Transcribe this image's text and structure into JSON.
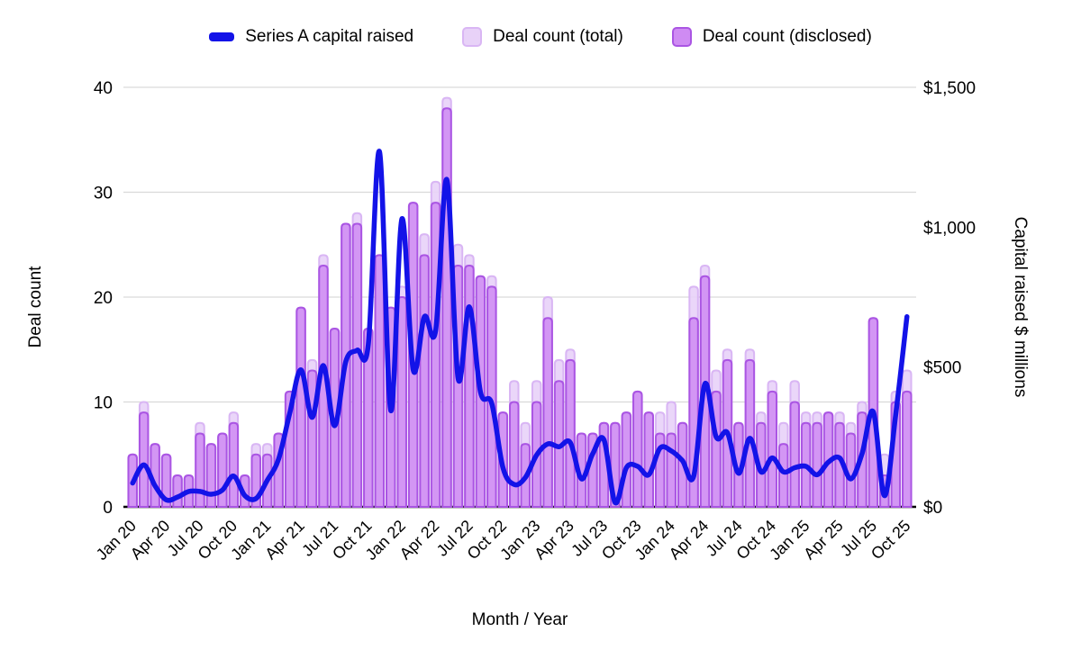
{
  "legend": {
    "items": [
      {
        "label": "Series A capital raised",
        "type": "line",
        "color": "#1313e8"
      },
      {
        "label": "Deal count (total)",
        "type": "bar",
        "color": "#e8d2f8",
        "border": "#d9b6f4"
      },
      {
        "label": "Deal count (disclosed)",
        "type": "bar",
        "color": "#cf8bf3",
        "border": "#aa55e3"
      }
    ]
  },
  "axes": {
    "left": {
      "title": "Deal count",
      "ticks": [
        "0",
        "10",
        "20",
        "30",
        "40"
      ],
      "range": [
        0,
        40
      ]
    },
    "right": {
      "title": "Capital raised $ millions",
      "ticks": [
        "$0",
        "$500",
        "$1,000",
        "$1,500"
      ],
      "range": [
        0,
        1500
      ]
    },
    "x": {
      "title": "Month / Year",
      "labels_every_n_months": 3
    }
  },
  "chart_data": {
    "type": "combo-bar-line",
    "categories": [
      "Jan 20",
      "Feb 20",
      "Mar 20",
      "Apr 20",
      "May 20",
      "Jun 20",
      "Jul 20",
      "Aug 20",
      "Sep 20",
      "Oct 20",
      "Nov 20",
      "Dec 20",
      "Jan 21",
      "Feb 21",
      "Mar 21",
      "Apr 21",
      "May 21",
      "Jun 21",
      "Jul 21",
      "Aug 21",
      "Sep 21",
      "Oct 21",
      "Nov 21",
      "Dec 21",
      "Jan 22",
      "Feb 22",
      "Mar 22",
      "Apr 22",
      "May 22",
      "Jun 22",
      "Jul 22",
      "Aug 22",
      "Sep 22",
      "Oct 22",
      "Nov 22",
      "Dec 22",
      "Jan 23",
      "Feb 23",
      "Mar 23",
      "Apr 23",
      "May 23",
      "Jun 23",
      "Jul 23",
      "Aug 23",
      "Sep 23",
      "Oct 23",
      "Nov 23",
      "Dec 23",
      "Jan 24",
      "Feb 24",
      "Mar 24",
      "Apr 24",
      "May 24",
      "Jun 24",
      "Jul 24",
      "Aug 24",
      "Sep 24",
      "Oct 24",
      "Nov 24",
      "Dec 24",
      "Jan 25",
      "Feb 25",
      "Mar 25",
      "Apr 25",
      "May 25",
      "Jun 25",
      "Jul 25",
      "Aug 25",
      "Sep 25",
      "Oct 25"
    ],
    "x_tick_labels": [
      "Jan 20",
      "Apr 20",
      "Jul 20",
      "Oct 20",
      "Jan 21",
      "Apr 21",
      "Jul 21",
      "Oct 21",
      "Jan 22",
      "Apr 22",
      "Jul 22",
      "Oct 22",
      "Jan 23",
      "Apr 23",
      "Jul 23",
      "Oct 23",
      "Jan 24",
      "Apr 24",
      "Jul 24",
      "Oct 24",
      "Jan 25",
      "Apr 25",
      "Jul 25",
      "Oct 25"
    ],
    "series": [
      {
        "name": "Deal count (total)",
        "axis": "left",
        "kind": "bar",
        "values": [
          5,
          10,
          6,
          5,
          3,
          3,
          8,
          6,
          7,
          9,
          3,
          6,
          6,
          7,
          11,
          19,
          14,
          24,
          17,
          27,
          28,
          17,
          24,
          19,
          21,
          29,
          26,
          31,
          39,
          25,
          24,
          22,
          22,
          9,
          12,
          8,
          12,
          20,
          14,
          15,
          7,
          7,
          8,
          8,
          9,
          11,
          9,
          9,
          10,
          8,
          21,
          23,
          13,
          15,
          8,
          15,
          9,
          12,
          8,
          12,
          9,
          9,
          9,
          9,
          8,
          10,
          18,
          5,
          11,
          13
        ]
      },
      {
        "name": "Deal count (disclosed)",
        "axis": "left",
        "kind": "bar",
        "values": [
          5,
          9,
          6,
          5,
          3,
          3,
          7,
          6,
          7,
          8,
          3,
          5,
          5,
          7,
          11,
          19,
          13,
          23,
          17,
          27,
          27,
          17,
          24,
          19,
          20,
          29,
          24,
          29,
          38,
          23,
          23,
          22,
          21,
          9,
          10,
          6,
          10,
          18,
          12,
          14,
          7,
          7,
          8,
          8,
          9,
          11,
          9,
          7,
          7,
          8,
          18,
          22,
          11,
          14,
          8,
          14,
          8,
          11,
          6,
          10,
          8,
          8,
          9,
          8,
          7,
          9,
          18,
          3,
          10,
          11
        ]
      },
      {
        "name": "Series A capital raised",
        "axis": "right",
        "kind": "line",
        "unit": "$ millions",
        "values": [
          85,
          150,
          75,
          25,
          35,
          55,
          55,
          45,
          60,
          110,
          40,
          30,
          95,
          170,
          335,
          490,
          320,
          505,
          290,
          520,
          560,
          580,
          1270,
          345,
          1030,
          490,
          680,
          630,
          1170,
          460,
          715,
          410,
          370,
          140,
          80,
          105,
          185,
          225,
          215,
          230,
          100,
          190,
          240,
          15,
          140,
          145,
          115,
          210,
          200,
          165,
          110,
          440,
          250,
          265,
          120,
          245,
          125,
          175,
          125,
          140,
          145,
          115,
          160,
          175,
          100,
          190,
          340,
          40,
          330,
          680
        ]
      }
    ],
    "grid": true,
    "legend_position": "top"
  },
  "colors": {
    "line": "#1313e8",
    "bar_total_fill": "#e8d2f8",
    "bar_total_border": "#d9b6f4",
    "bar_disclosed_fill": "#cf8bf3",
    "bar_disclosed_border": "#aa55e3",
    "gridline": "#d9d9d9",
    "axis_line": "#000000"
  }
}
